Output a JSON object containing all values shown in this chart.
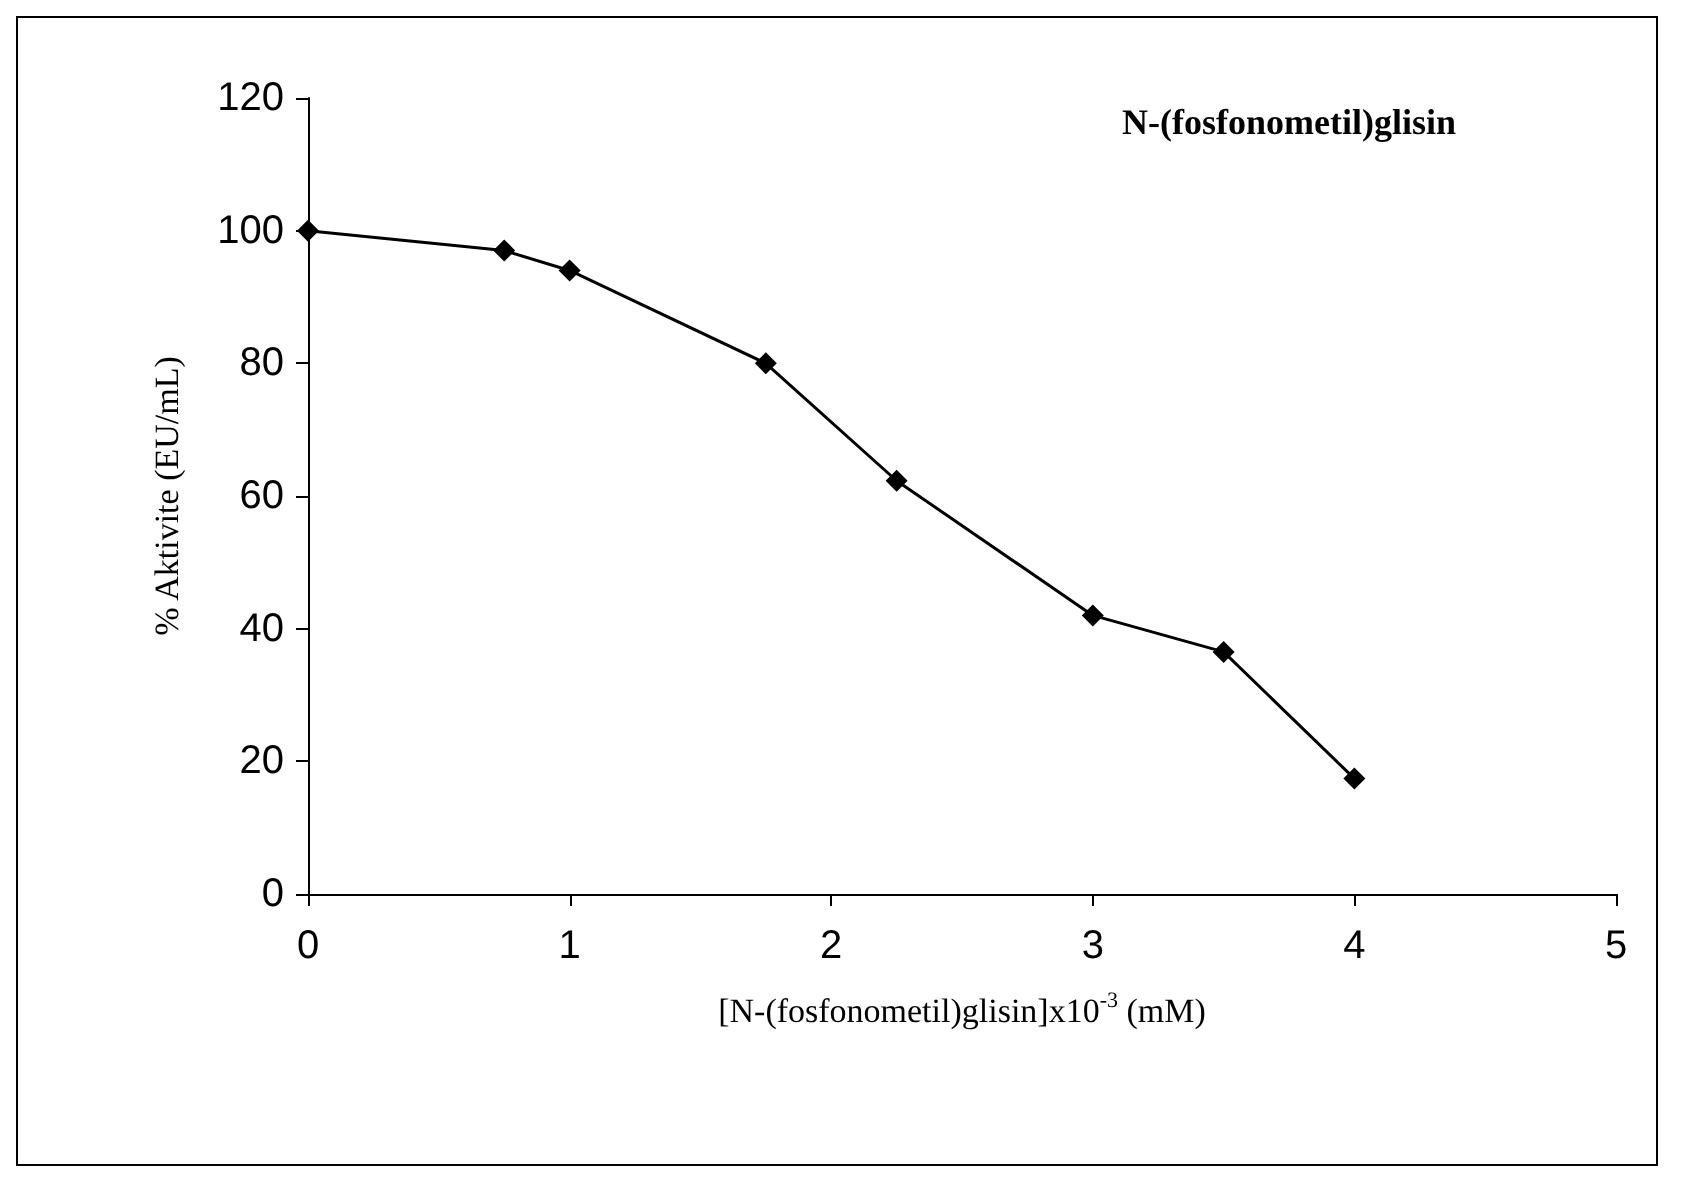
{
  "chart_data": {
    "type": "line",
    "title": "N-(fosfonometil)glisin",
    "xlabel": "[N-(fosfonometil)glisin]x10$^{-3}$ (mM)",
    "ylabel": "% Aktivite (EU/mL)",
    "x": [
      0,
      0.75,
      1,
      1.75,
      2.25,
      3,
      3.5,
      4
    ],
    "series": [
      {
        "color": "#000000",
        "values": [
          100,
          97,
          94,
          80,
          62.3,
          42,
          36.5,
          17.4
        ]
      }
    ],
    "xlim": [
      0,
      5
    ],
    "xticks": [
      0,
      1,
      2,
      3,
      4,
      5
    ],
    "ylim": [
      0,
      120
    ],
    "yticks": [
      0,
      20,
      40,
      60,
      80,
      100,
      120
    ],
    "grid": false,
    "marker": "diamond",
    "line_style": "solid"
  }
}
